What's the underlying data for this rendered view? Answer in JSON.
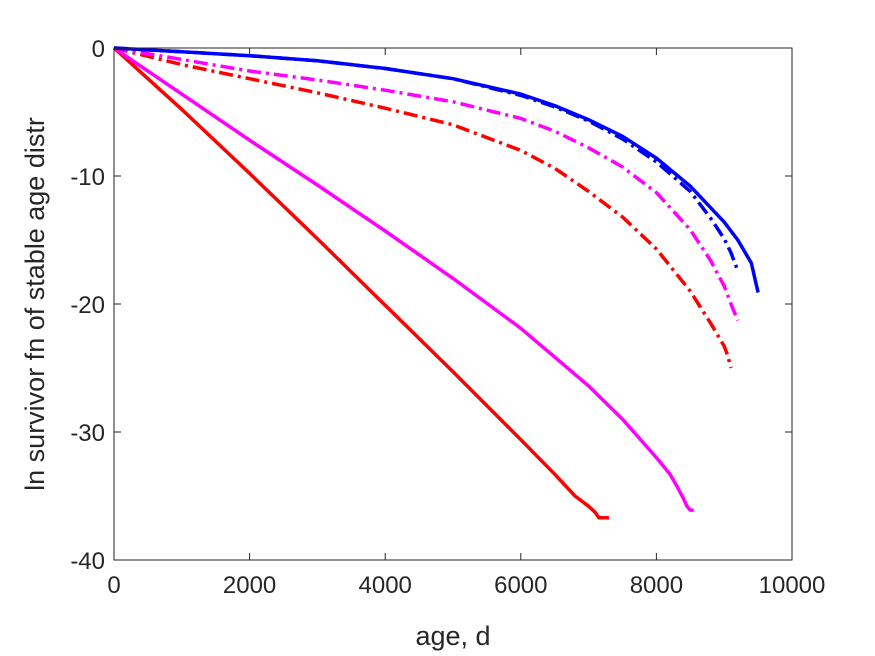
{
  "chart_data": {
    "type": "line",
    "title": "",
    "xlabel": "age, d",
    "ylabel": "ln survivor fn of stable age distr",
    "xlim": [
      0,
      10000
    ],
    "ylim": [
      -40,
      0
    ],
    "xticks": [
      0,
      2000,
      4000,
      6000,
      8000,
      10000
    ],
    "yticks": [
      0,
      -10,
      -20,
      -30,
      -40
    ],
    "xtick_labels": [
      "0",
      "2000",
      "4000",
      "6000",
      "8000",
      "10000"
    ],
    "ytick_labels": [
      "0",
      "-10",
      "-20",
      "-30",
      "-40"
    ],
    "grid": false,
    "legend": "none",
    "series": [
      {
        "color": "#FF0000",
        "style": "solid",
        "x": [
          0,
          1000,
          2000,
          3000,
          4000,
          5000,
          6000,
          6500,
          6800,
          7000,
          7100,
          7150,
          7200,
          7300
        ],
        "y": [
          0,
          -4.8,
          -9.8,
          -14.9,
          -20.1,
          -25.3,
          -30.6,
          -33.3,
          -35.0,
          -35.8,
          -36.3,
          -36.7,
          -36.7,
          -36.7
        ]
      },
      {
        "color": "#FF00FF",
        "style": "solid",
        "x": [
          0,
          1000,
          2000,
          3000,
          4000,
          5000,
          6000,
          7000,
          7500,
          8000,
          8200,
          8300,
          8400,
          8450,
          8500,
          8550
        ],
        "y": [
          0,
          -3.6,
          -7.2,
          -10.7,
          -14.3,
          -18.0,
          -21.9,
          -26.4,
          -29.0,
          -32.0,
          -33.3,
          -34.2,
          -35.2,
          -35.8,
          -36.1,
          -36.1
        ]
      },
      {
        "color": "#FF0000",
        "style": "dashdot",
        "x": [
          0,
          1000,
          2000,
          3000,
          4000,
          5000,
          6000,
          6500,
          7000,
          7500,
          8000,
          8500,
          8800,
          9000,
          9050,
          9100
        ],
        "y": [
          0,
          -1.3,
          -2.4,
          -3.5,
          -4.7,
          -6.0,
          -8.0,
          -9.4,
          -11.2,
          -13.2,
          -15.7,
          -19.0,
          -21.5,
          -23.3,
          -24.0,
          -25.0
        ]
      },
      {
        "color": "#FF00FF",
        "style": "dashdot",
        "x": [
          0,
          1000,
          2000,
          3000,
          4000,
          5000,
          6000,
          6500,
          7000,
          7500,
          8000,
          8500,
          8800,
          9000,
          9100,
          9200
        ],
        "y": [
          0,
          -0.9,
          -1.8,
          -2.5,
          -3.3,
          -4.2,
          -5.5,
          -6.5,
          -7.8,
          -9.3,
          -11.3,
          -14.2,
          -16.6,
          -18.6,
          -20.0,
          -21.3
        ]
      },
      {
        "color": "#0000FF",
        "style": "dashdot",
        "x": [
          0,
          1000,
          2000,
          3000,
          4000,
          5000,
          6000,
          6500,
          7000,
          7500,
          8000,
          8500,
          8800,
          9000,
          9100,
          9200
        ],
        "y": [
          0,
          -0.3,
          -0.6,
          -1.0,
          -1.6,
          -2.4,
          -3.7,
          -4.6,
          -5.7,
          -7.1,
          -8.9,
          -11.2,
          -13.3,
          -14.9,
          -16.0,
          -17.4
        ]
      },
      {
        "color": "#0000FF",
        "style": "solid",
        "x": [
          0,
          1000,
          2000,
          3000,
          4000,
          5000,
          6000,
          6500,
          7000,
          7500,
          8000,
          8500,
          9000,
          9200,
          9400,
          9500
        ],
        "y": [
          0,
          -0.3,
          -0.6,
          -1.0,
          -1.6,
          -2.4,
          -3.6,
          -4.5,
          -5.6,
          -6.9,
          -8.6,
          -10.8,
          -13.6,
          -15.0,
          -16.8,
          -19.1
        ]
      }
    ]
  }
}
